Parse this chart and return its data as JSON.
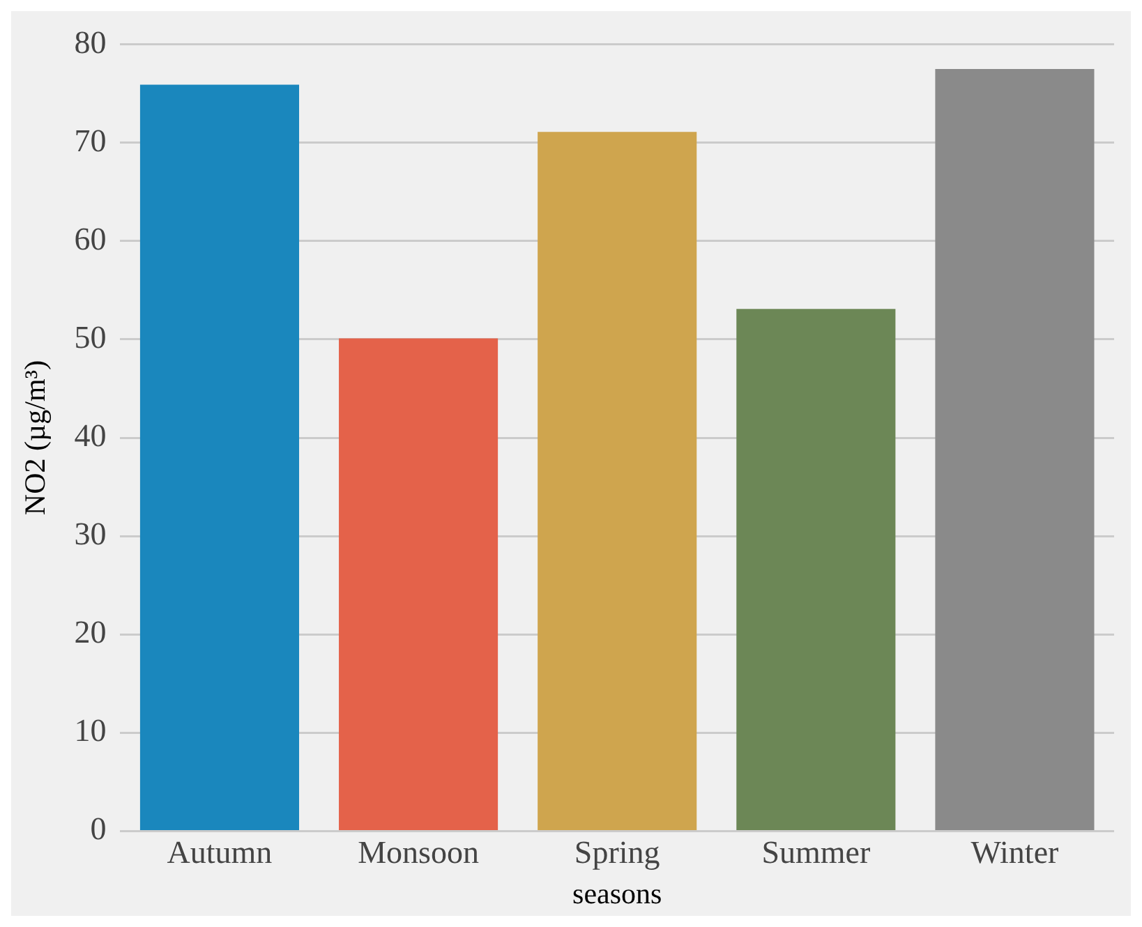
{
  "chart_data": {
    "type": "bar",
    "xlabel": "seasons",
    "ylabel": "NO2 (µg/m³)",
    "categories": [
      "Autumn",
      "Monsoon",
      "Spring",
      "Summer",
      "Winter"
    ],
    "values": [
      75.9,
      50.1,
      71.1,
      53.1,
      77.5
    ],
    "colors": [
      "#1a87bd",
      "#e4624a",
      "#cfa54e",
      "#6c8756",
      "#8a8a8a"
    ],
    "ylim": [
      0,
      80
    ],
    "yticks": [
      0,
      10,
      20,
      30,
      40,
      50,
      60,
      70,
      80
    ],
    "grid": "y"
  }
}
